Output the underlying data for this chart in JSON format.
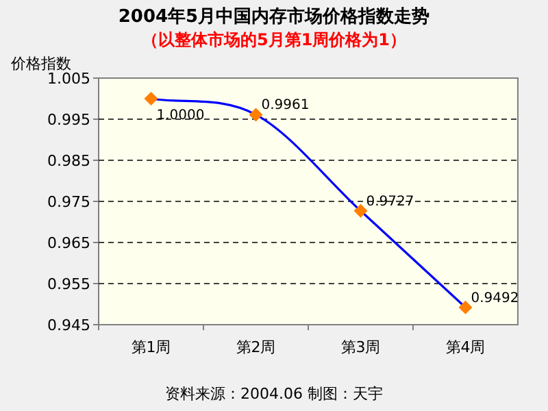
{
  "chart_data": {
    "type": "line",
    "title": "2004年5月中国内存市场价格指数走势",
    "subtitle": "（以整体市场的5月第1周价格为1）",
    "ylabel": "价格指数",
    "categories": [
      "第1周",
      "第2周",
      "第3周",
      "第4周"
    ],
    "series": [
      {
        "color": "#0000ff",
        "values": [
          1.0,
          0.9961,
          0.9727,
          0.9492
        ],
        "value_labels": [
          "1.0000",
          "0.9961",
          "0.9727",
          "0.9492"
        ]
      }
    ],
    "marker": "diamond",
    "ylim": [
      0.945,
      1.005
    ],
    "yticks": [
      0.945,
      0.955,
      0.965,
      0.975,
      0.985,
      0.995,
      1.005
    ],
    "grid": "y",
    "annotations": [
      "资料来源：2004.06  制图：天宇"
    ]
  }
}
